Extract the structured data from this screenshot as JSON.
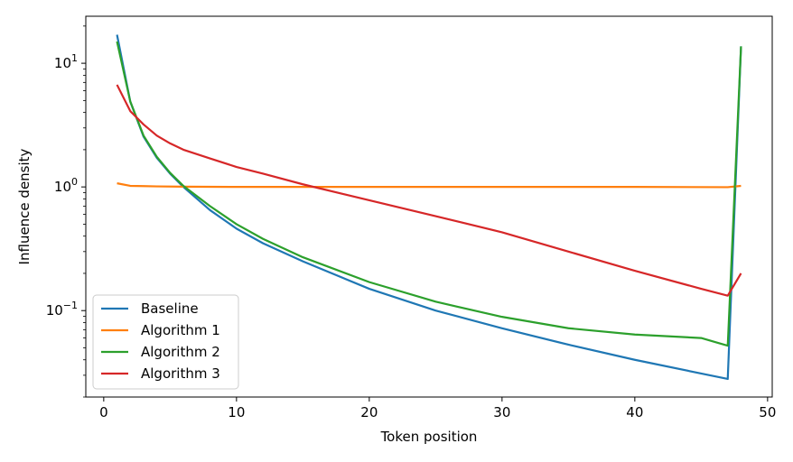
{
  "chart_data": {
    "type": "line",
    "title": "",
    "xlabel": "Token position",
    "ylabel": "Influence density",
    "xlim": [
      -1.35,
      50.35
    ],
    "ylim": [
      0.02,
      24
    ],
    "yscale": "log",
    "grid": false,
    "legend_position": "lower-left",
    "x_ticks": [
      {
        "value": 0,
        "label": "0"
      },
      {
        "value": 10,
        "label": "10"
      },
      {
        "value": 20,
        "label": "20"
      },
      {
        "value": 30,
        "label": "30"
      },
      {
        "value": 40,
        "label": "40"
      },
      {
        "value": 50,
        "label": "50"
      }
    ],
    "y_ticks": [
      {
        "value": 0.1,
        "base": "10",
        "exp": "−1"
      },
      {
        "value": 1,
        "base": "10",
        "exp": "0"
      },
      {
        "value": 10,
        "base": "10",
        "exp": "1"
      }
    ],
    "series": [
      {
        "name": "Baseline",
        "color": "#1f77b4",
        "x": [
          1,
          2,
          3,
          4,
          5,
          6,
          8,
          10,
          12,
          15,
          20,
          25,
          30,
          35,
          40,
          45,
          47,
          48
        ],
        "y": [
          17,
          4.9,
          2.55,
          1.72,
          1.28,
          1.0,
          0.65,
          0.46,
          0.35,
          0.25,
          0.15,
          0.1,
          0.072,
          0.053,
          0.04,
          0.031,
          0.028,
          13.7
        ]
      },
      {
        "name": "Algorithm 1",
        "color": "#ff7f0e",
        "x": [
          1,
          2,
          3,
          4,
          6,
          10,
          20,
          30,
          40,
          47,
          48
        ],
        "y": [
          1.07,
          1.02,
          1.015,
          1.01,
          1.005,
          1.0,
          1.0,
          1.0,
          1.0,
          0.995,
          1.02
        ]
      },
      {
        "name": "Algorithm 2",
        "color": "#2ca02c",
        "x": [
          1,
          2,
          3,
          4,
          5,
          6,
          8,
          10,
          12,
          15,
          20,
          25,
          30,
          35,
          40,
          45,
          47,
          48
        ],
        "y": [
          15,
          4.9,
          2.6,
          1.75,
          1.3,
          1.02,
          0.7,
          0.5,
          0.38,
          0.27,
          0.17,
          0.118,
          0.089,
          0.072,
          0.064,
          0.06,
          0.052,
          13.7
        ]
      },
      {
        "name": "Algorithm 3",
        "color": "#d62728",
        "x": [
          1,
          2,
          3,
          4,
          5,
          6,
          8,
          10,
          12,
          15,
          20,
          25,
          30,
          35,
          40,
          45,
          47,
          48
        ],
        "y": [
          6.7,
          4.1,
          3.2,
          2.6,
          2.25,
          2.0,
          1.7,
          1.45,
          1.28,
          1.05,
          0.78,
          0.58,
          0.43,
          0.3,
          0.21,
          0.15,
          0.132,
          0.2
        ]
      }
    ]
  }
}
